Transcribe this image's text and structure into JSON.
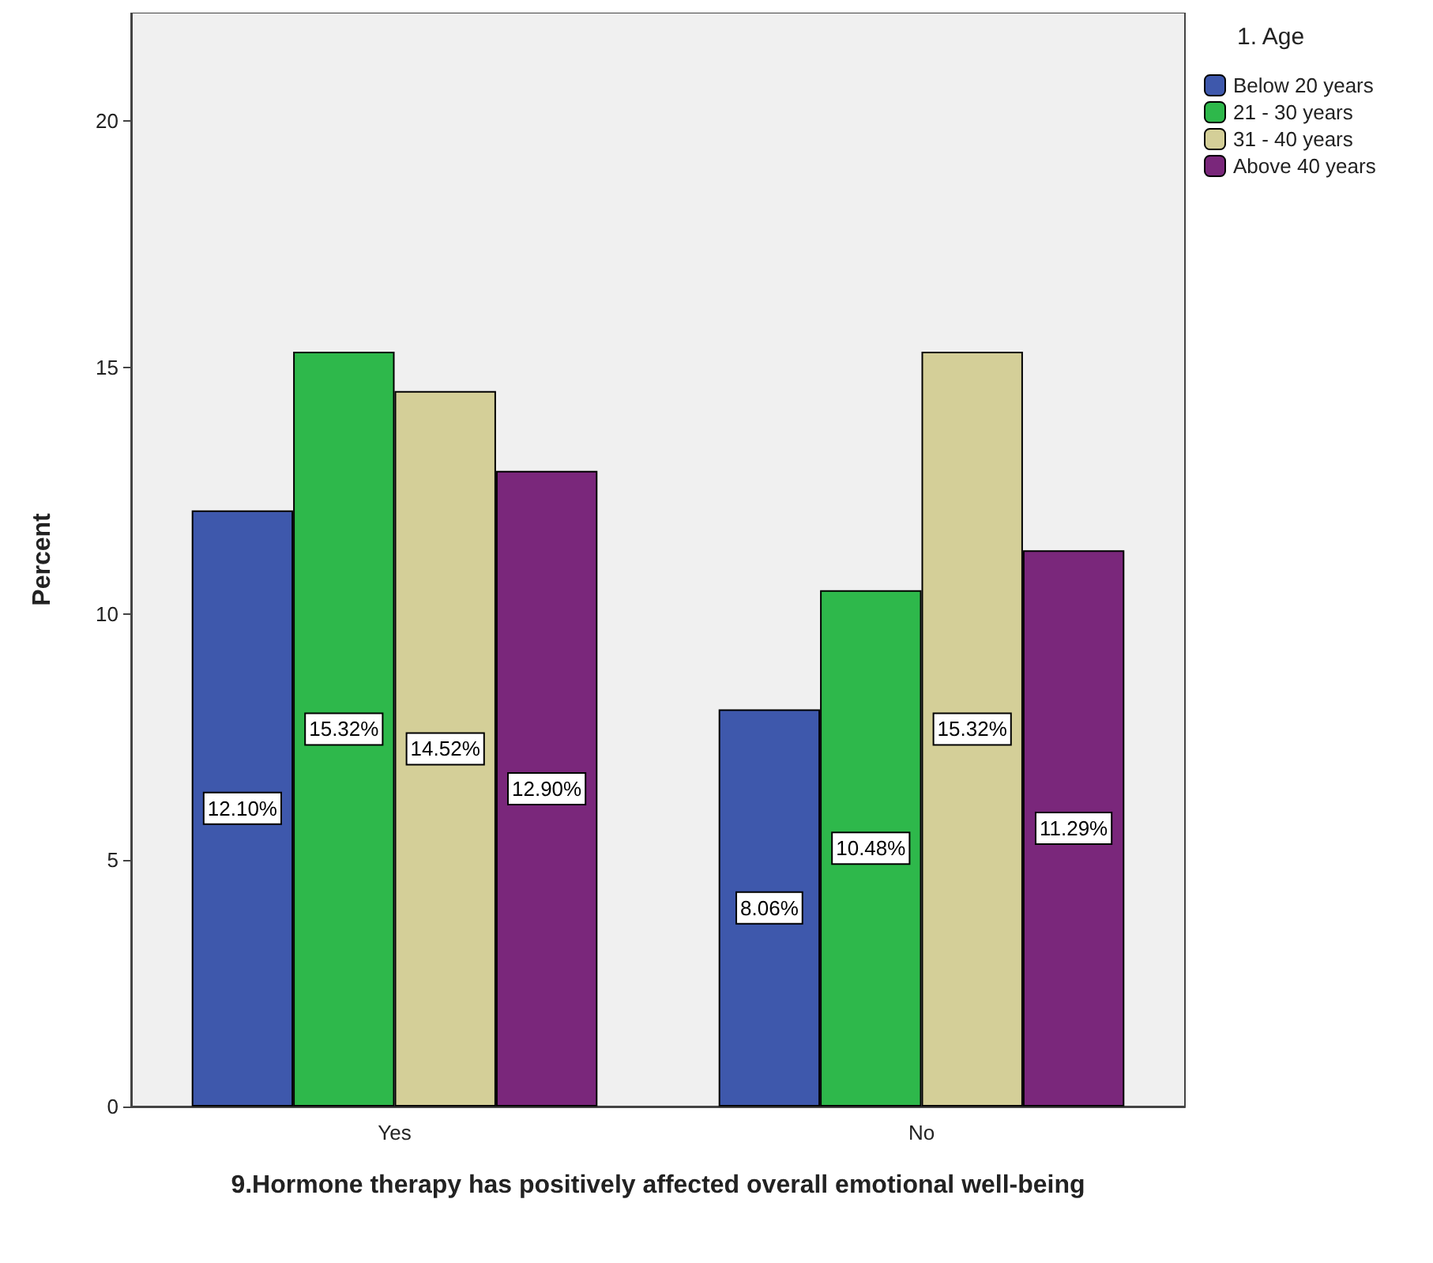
{
  "chart_data": {
    "type": "bar",
    "xlabel": "9.Hormone therapy has positively affected overall emotional well-being",
    "ylabel": "Percent",
    "legend_title": "1. Age",
    "categories": [
      "Yes",
      "No"
    ],
    "series": [
      {
        "name": "Below 20 years",
        "color": "#3e58ac",
        "values": [
          12.1,
          8.06
        ],
        "value_labels": [
          "12.10%",
          "8.06%"
        ]
      },
      {
        "name": "21 - 30 years",
        "color": "#2eb84b",
        "values": [
          15.32,
          10.48
        ],
        "value_labels": [
          "15.32%",
          "10.48%"
        ]
      },
      {
        "name": "31 - 40 years",
        "color": "#d4cf98",
        "values": [
          14.52,
          15.32
        ],
        "value_labels": [
          "14.52%",
          "15.32%"
        ]
      },
      {
        "name": "Above 40 years",
        "color": "#7a277b",
        "values": [
          12.9,
          11.29
        ],
        "value_labels": [
          "12.90%",
          "11.29%"
        ]
      }
    ],
    "ylim": [
      0,
      22.2
    ],
    "yticks": [
      0,
      5,
      10,
      15,
      20
    ],
    "grid": false,
    "legend": "top right"
  }
}
